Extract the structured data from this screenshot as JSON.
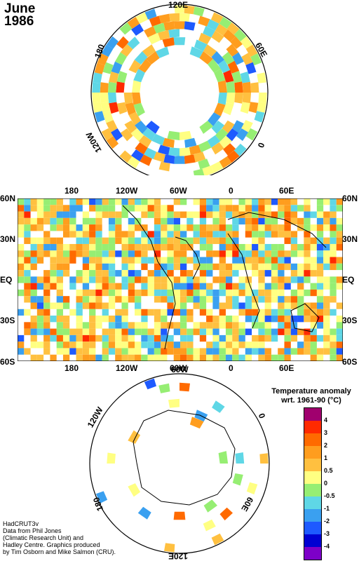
{
  "title": {
    "month": "June",
    "year": "1986"
  },
  "north_polar": {
    "labels": {
      "top": "120E",
      "left": "180",
      "right": "60E",
      "lower_left": "120W",
      "lower_right": "0"
    }
  },
  "world_map": {
    "top_lon_labels": [
      "180",
      "120W",
      "60W",
      "0",
      "60E"
    ],
    "bottom_lon_labels": [
      "180",
      "120W",
      "60W",
      "0",
      "60E"
    ],
    "lat_labels": [
      "60N",
      "30N",
      "EQ",
      "30S",
      "60S"
    ]
  },
  "south_polar": {
    "labels": {
      "top": "60W",
      "upper_left": "120W",
      "right": "0",
      "lower_left": "180",
      "lower_right": "60E",
      "bottom": "120E"
    }
  },
  "legend": {
    "title_line1": "Temperature anomaly",
    "title_line2": "wrt. 1961-90  (°C)",
    "ticks": [
      "4",
      "3",
      "2",
      "1",
      "0.5",
      "0",
      "-0.5",
      "-1",
      "-2",
      "-3",
      "-4"
    ],
    "colors": [
      "#a0006e",
      "#ff2a00",
      "#ff6a00",
      "#ff9d1e",
      "#ffc040",
      "#ffff82",
      "#96ee73",
      "#5fd7e6",
      "#3aa0f0",
      "#1e5aff",
      "#0000d2",
      "#7d00c8"
    ]
  },
  "credit": [
    "HadCRUT3v",
    "Data from Phil Jones",
    "(Climatic Research Unit) and",
    "Hadley Centre.  Graphics produced",
    "by Tim Osborn and Mike Salmon (CRU)."
  ]
}
